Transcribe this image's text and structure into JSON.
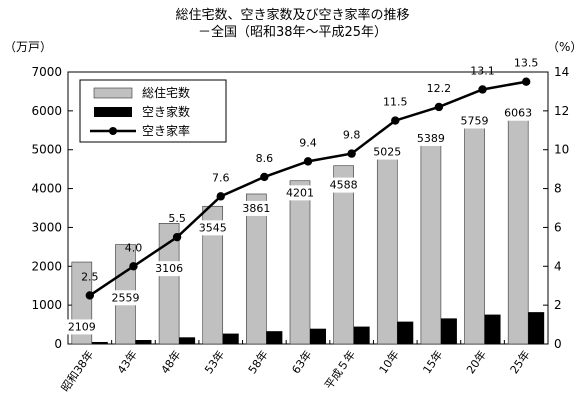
{
  "chart_data": {
    "type": "bar",
    "title": "総住宅数、空き家数及び空き家率の推移",
    "subtitle": "－全国（昭和38年～平成25年）",
    "y_left_unit": "（万戸）",
    "y_right_unit": "（%）",
    "categories": [
      "昭和38年",
      "43年",
      "48年",
      "53年",
      "58年",
      "63年",
      "平成５年",
      "10年",
      "15年",
      "20年",
      "25年"
    ],
    "ylim_left": [
      0,
      7000
    ],
    "yticks_left": [
      0,
      1000,
      2000,
      3000,
      4000,
      5000,
      6000,
      7000
    ],
    "ylim_right": [
      0,
      14
    ],
    "yticks_right": [
      0,
      2,
      4,
      6,
      8,
      10,
      12,
      14
    ],
    "series": [
      {
        "name": "総住宅数",
        "type": "bar",
        "axis": "left",
        "color": "#c0c0c0",
        "values": [
          2109,
          2559,
          3106,
          3545,
          3861,
          4201,
          4588,
          5025,
          5389,
          5759,
          6063
        ],
        "labels": [
          "2109",
          "2559",
          "3106",
          "3545",
          "3861",
          "4201",
          "4588",
          "5025",
          "5389",
          "5759",
          "6063"
        ]
      },
      {
        "name": "空き家数",
        "type": "bar",
        "axis": "left",
        "color": "#000000",
        "values": [
          52,
          103,
          172,
          268,
          330,
          394,
          448,
          576,
          659,
          757,
          820
        ]
      },
      {
        "name": "空き家率",
        "type": "line",
        "axis": "right",
        "color": "#000000",
        "values": [
          2.5,
          4.0,
          5.5,
          7.6,
          8.6,
          9.4,
          9.8,
          11.5,
          12.2,
          13.1,
          13.5
        ],
        "labels": [
          "2.5",
          "4.0",
          "5.5",
          "7.6",
          "8.6",
          "9.4",
          "9.8",
          "11.5",
          "12.2",
          "13.1",
          "13.5"
        ]
      }
    ],
    "legend_position": "top-left",
    "grid": false
  }
}
